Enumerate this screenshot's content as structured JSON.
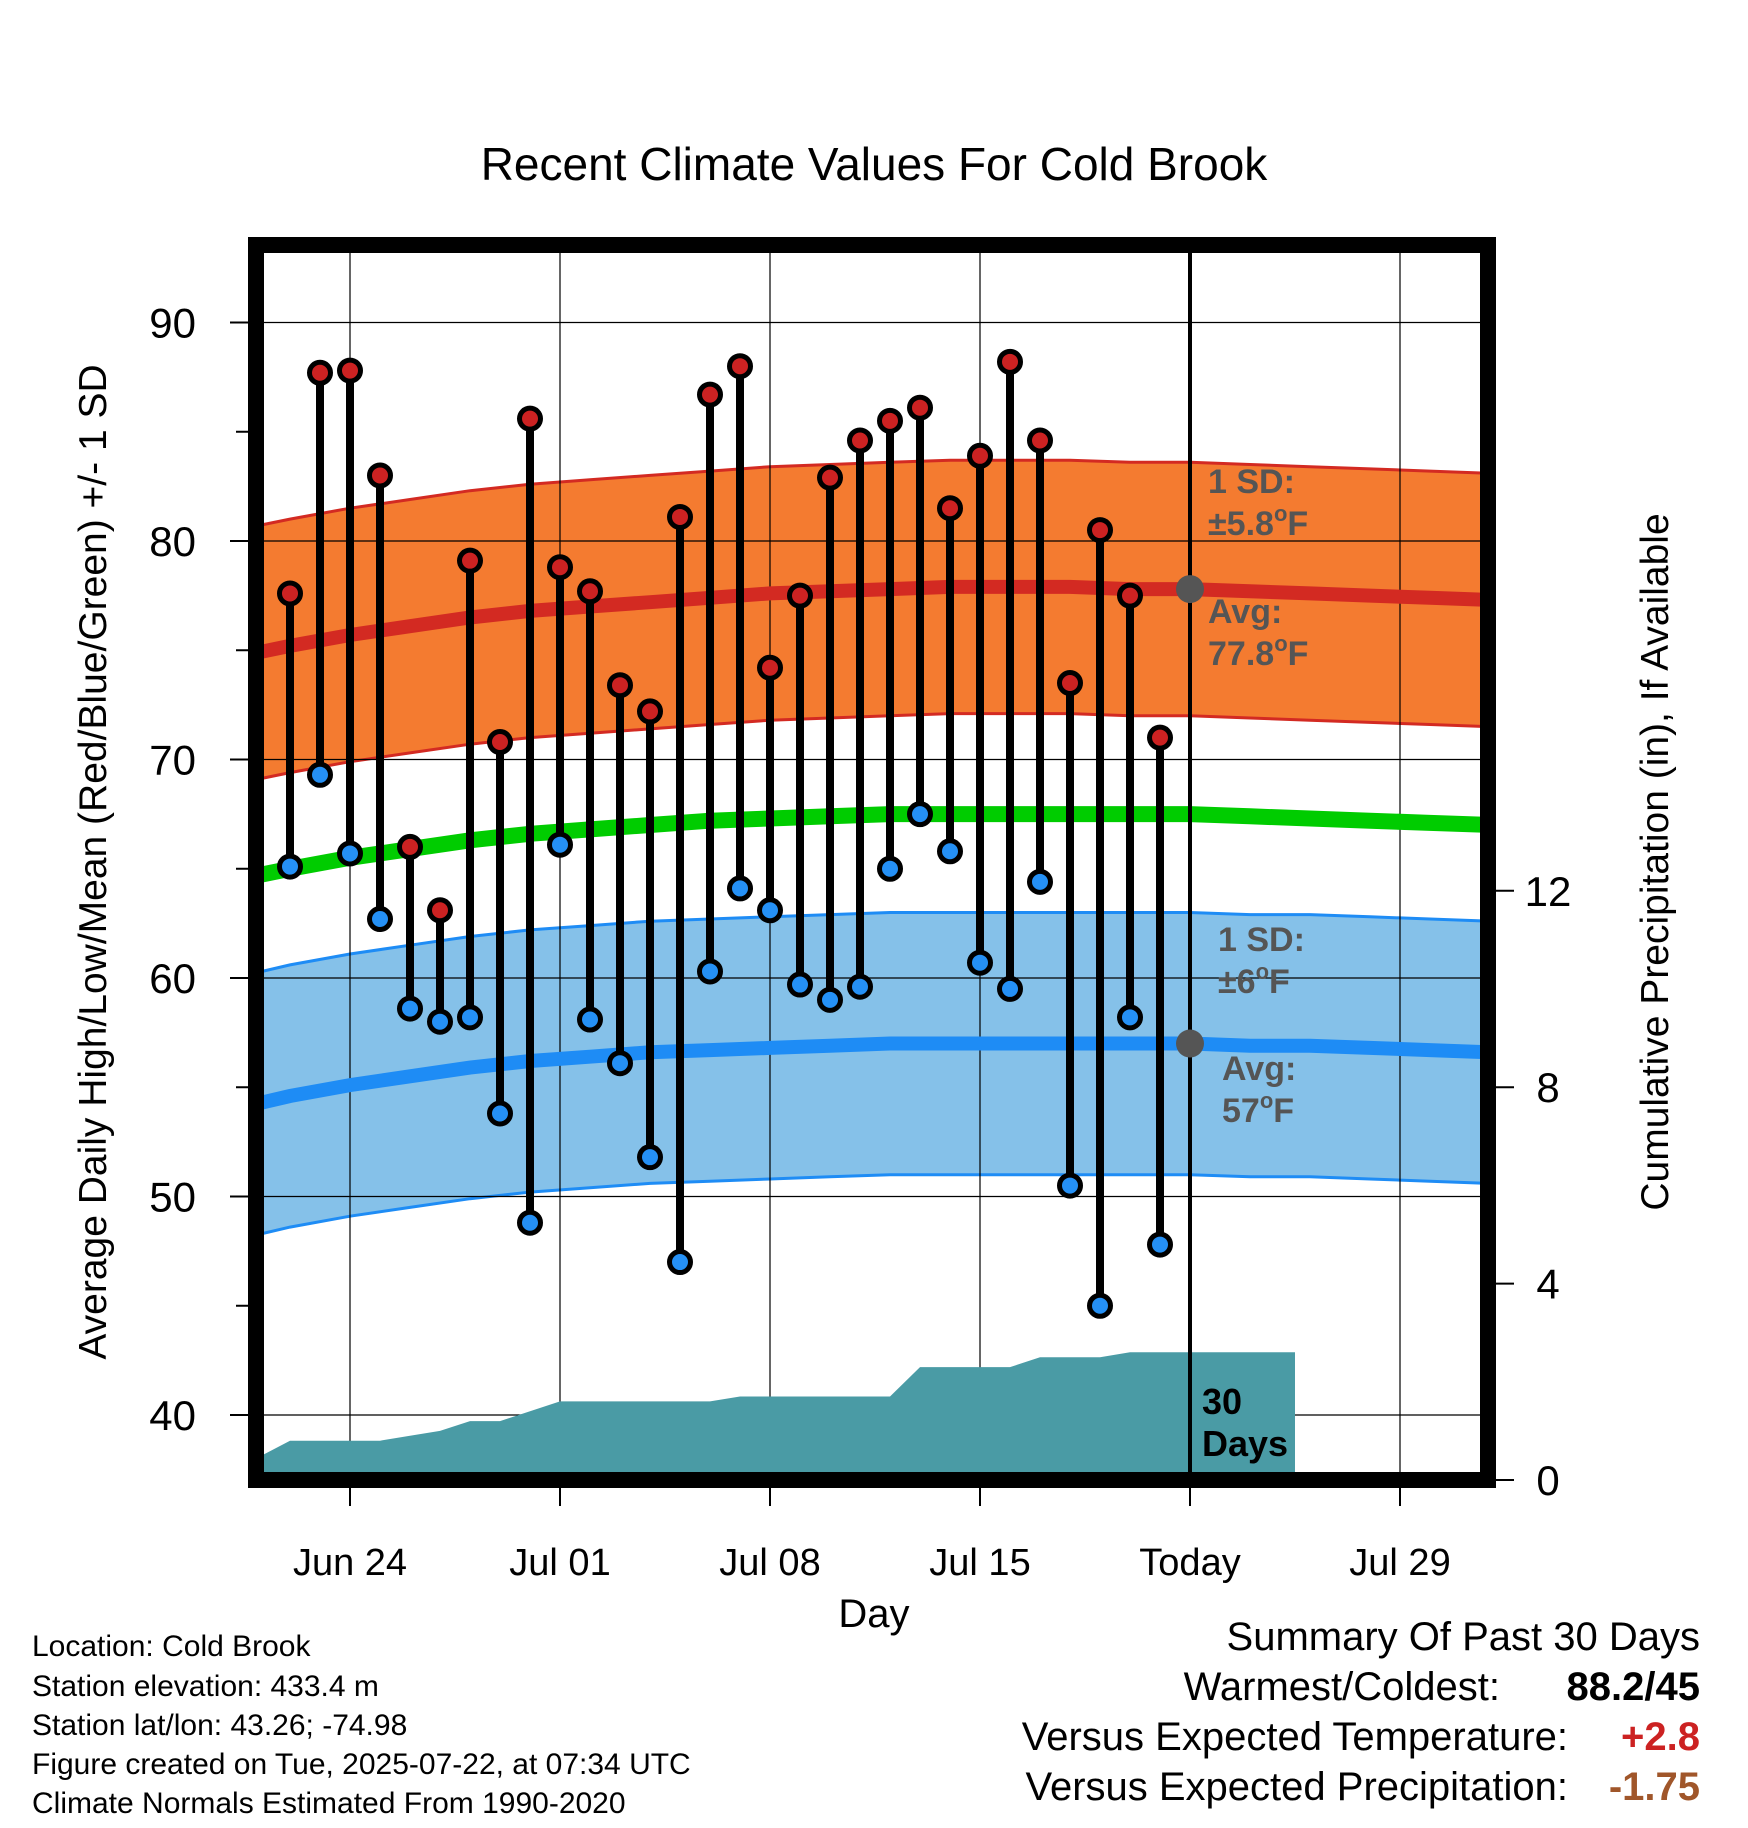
{
  "chart_data": {
    "type": "line",
    "title": "Recent Climate Values For Cold Brook",
    "xlabel": "Day",
    "ylabel": "Average Daily High/Low/Mean (Red/Blue/Green) +/- 1 SD",
    "y2label": "Cumulative Precipitation (in), If Available",
    "ylim": [
      37,
      94
    ],
    "y2lim": [
      0,
      24
    ],
    "xlim": [
      -4.5,
      54.5
    ],
    "x_ticks": [
      {
        "x": 0,
        "label": "Jun 24"
      },
      {
        "x": 7,
        "label": "Jul 01"
      },
      {
        "x": 14,
        "label": "Jul 08"
      },
      {
        "x": 21,
        "label": "Jul 15"
      },
      {
        "x": 28,
        "label": "Today"
      },
      {
        "x": 35,
        "label": "Jul 29"
      }
    ],
    "y_ticks": [
      40,
      50,
      60,
      70,
      80,
      90
    ],
    "y2_ticks": [
      0,
      4,
      8,
      12
    ],
    "grid": true,
    "today_x": 28,
    "today_label": "30\nDays",
    "days_x": [
      -2,
      -1,
      0,
      1,
      2,
      3,
      4,
      5,
      6,
      7,
      8,
      9,
      10,
      11,
      12,
      13,
      14,
      15,
      16,
      17,
      18,
      19,
      20,
      21,
      22,
      23,
      24,
      25,
      26,
      27
    ],
    "highs": [
      77.6,
      87.7,
      87.8,
      83.0,
      66.0,
      63.1,
      79.1,
      70.8,
      85.6,
      78.8,
      77.7,
      73.4,
      72.2,
      81.1,
      86.7,
      88.0,
      74.2,
      77.5,
      82.9,
      84.6,
      85.5,
      86.1,
      81.5,
      83.9,
      88.2,
      84.6,
      73.5,
      80.5,
      77.5,
      71.0
    ],
    "lows": [
      65.1,
      69.3,
      65.7,
      62.7,
      58.6,
      58.0,
      58.2,
      53.8,
      48.8,
      66.1,
      58.1,
      56.1,
      51.8,
      47.0,
      60.3,
      64.1,
      63.1,
      59.7,
      59.0,
      59.6,
      65.0,
      67.5,
      65.8,
      60.7,
      59.5,
      64.4,
      50.5,
      45.0,
      58.2,
      47.8
    ],
    "normals": {
      "x": [
        -4.5,
        -2,
        0,
        2,
        4,
        6,
        8,
        10,
        12,
        14,
        16,
        18,
        20,
        22,
        24,
        26,
        28,
        30,
        32,
        34,
        36,
        38,
        40,
        42,
        44,
        46,
        48,
        50,
        52,
        54.5
      ],
      "high_avg": [
        74.5,
        75.2,
        75.7,
        76.1,
        76.5,
        76.8,
        77.0,
        77.2,
        77.4,
        77.6,
        77.7,
        77.8,
        77.9,
        77.9,
        77.9,
        77.8,
        77.8,
        77.7,
        77.6,
        77.5,
        77.4,
        77.3,
        77.2,
        77.1,
        77.0,
        76.9,
        76.8,
        76.7,
        76.6,
        76.5
      ],
      "high_sd": 5.8,
      "mean": [
        64.3,
        65.0,
        65.5,
        65.9,
        66.3,
        66.6,
        66.8,
        67.0,
        67.2,
        67.3,
        67.4,
        67.5,
        67.5,
        67.5,
        67.5,
        67.5,
        67.5,
        67.4,
        67.3,
        67.2,
        67.1,
        67.0,
        66.9,
        66.8,
        66.7,
        66.6,
        66.5,
        66.4,
        66.3,
        66.2
      ],
      "low_avg": [
        53.8,
        54.6,
        55.1,
        55.5,
        55.9,
        56.2,
        56.4,
        56.6,
        56.7,
        56.8,
        56.9,
        57.0,
        57.0,
        57.0,
        57.0,
        57.0,
        57.0,
        56.9,
        56.9,
        56.8,
        56.7,
        56.6,
        56.5,
        56.4,
        56.3,
        56.2,
        56.1,
        56.0,
        55.9,
        55.8
      ],
      "low_sd": 6.0
    },
    "precip_cum": {
      "x": [
        -4.5,
        -2,
        -1,
        0,
        1,
        2,
        3,
        4,
        5,
        6,
        7,
        8,
        9,
        10,
        11,
        12,
        13,
        14,
        15,
        16,
        17,
        18,
        19,
        20,
        21,
        22,
        23,
        24,
        25,
        26,
        27,
        28,
        31.5
      ],
      "y": [
        0.0,
        0.8,
        0.8,
        0.8,
        0.8,
        0.9,
        1.0,
        1.2,
        1.2,
        1.4,
        1.6,
        1.6,
        1.6,
        1.6,
        1.6,
        1.6,
        1.7,
        1.7,
        1.7,
        1.7,
        1.7,
        1.7,
        2.3,
        2.3,
        2.3,
        2.3,
        2.5,
        2.5,
        2.5,
        2.6,
        2.6,
        2.6,
        2.6
      ]
    },
    "annotations": {
      "high_sd": {
        "line1": "1 SD:",
        "prefix": "±",
        "value": "5.8",
        "unit": "F"
      },
      "high_avg": {
        "line1": "Avg:",
        "value": "77.8",
        "unit": "F"
      },
      "low_sd": {
        "line1": "1 SD:",
        "prefix": "±",
        "value": "6",
        "unit": "F"
      },
      "low_avg": {
        "line1": "Avg:",
        "value": "57",
        "unit": "F"
      },
      "degree": "o"
    },
    "colors": {
      "high_band": "#f47b30",
      "high_line": "#d32a22",
      "low_band": "#85c1e9",
      "low_line": "#1e8cf5",
      "mean_line": "#00cc00",
      "precip": "#4a9ba5",
      "high_dot": "#cc2222",
      "low_dot": "#2590f5",
      "annotation": "#555555"
    }
  },
  "footer_left": {
    "location": "Location: Cold Brook",
    "elevation": "Station elevation: 433.4 m",
    "latlon": "Station lat/lon: 43.26; -74.98",
    "created": "Figure created on Tue, 2025-07-22, at 07:34 UTC",
    "normals": "Climate Normals Estimated From 1990-2020"
  },
  "summary": {
    "heading": "Summary Of Past 30 Days",
    "warmest_label": "Warmest/Coldest:",
    "warmest_value": "88.2/45",
    "temp_label": "Versus Expected Temperature:",
    "temp_value": "+2.8",
    "temp_color": "#cc2222",
    "precip_label": "Versus Expected Precipitation:",
    "precip_value": "-1.75",
    "precip_color": "#a0562a"
  }
}
